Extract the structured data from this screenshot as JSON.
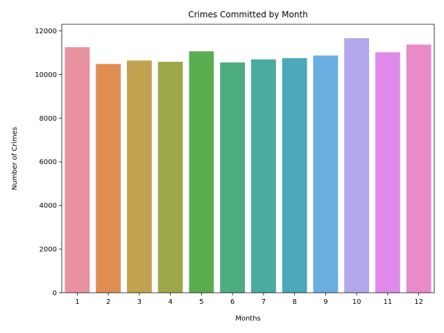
{
  "chart_data": {
    "type": "bar",
    "title": "Crimes Committed by Month",
    "xlabel": "Months",
    "ylabel": "Number of Crimes",
    "categories": [
      "1",
      "2",
      "3",
      "4",
      "5",
      "6",
      "7",
      "8",
      "9",
      "10",
      "11",
      "12"
    ],
    "values": [
      11250,
      10480,
      10640,
      10580,
      11060,
      10550,
      10690,
      10750,
      10870,
      11660,
      11020,
      11370
    ],
    "colors": [
      "#e8929f",
      "#e08c52",
      "#c0a24f",
      "#9ea64a",
      "#5aad4e",
      "#4dac80",
      "#4aaba0",
      "#4aa8b8",
      "#6aaee2",
      "#b3a6ea",
      "#df8aea",
      "#e88bc8"
    ],
    "ylim": [
      0,
      12300
    ],
    "yticks": [
      "0",
      "2000",
      "4000",
      "6000",
      "8000",
      "10000",
      "12000"
    ],
    "grid": false,
    "legend": "none"
  }
}
